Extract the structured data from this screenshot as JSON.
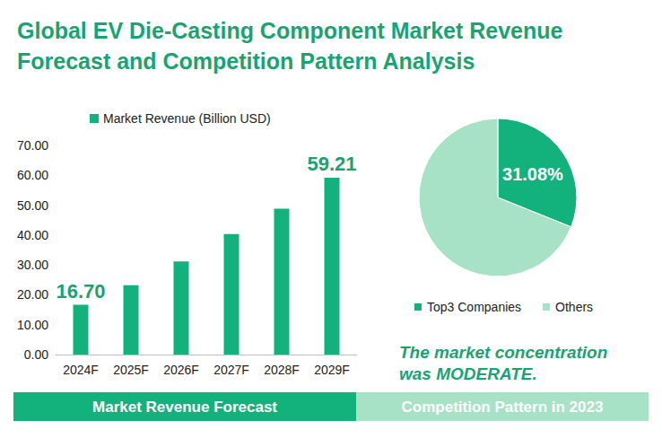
{
  "title": "Global EV Die-Casting Component Market Revenue Forecast and Competition Pattern Analysis",
  "chart_data": [
    {
      "type": "bar",
      "subtitle": "Market Revenue Forecast",
      "categories": [
        "2024F",
        "2025F",
        "2026F",
        "2027F",
        "2028F",
        "2029F"
      ],
      "series": [
        {
          "name": "Market Revenue (Billion USD)",
          "color": "#13b27d",
          "values": [
            16.7,
            23.2,
            31.2,
            40.3,
            48.8,
            59.21
          ],
          "value_labels": [
            "16.70",
            null,
            null,
            null,
            null,
            "59.21"
          ]
        }
      ],
      "ylim": [
        0,
        70
      ],
      "yticks": [
        {
          "value": 0,
          "label": "0.00"
        },
        {
          "value": 10,
          "label": "10.00"
        },
        {
          "value": 20,
          "label": "20.00"
        },
        {
          "value": 30,
          "label": "30.00"
        },
        {
          "value": 40,
          "label": "40.00"
        },
        {
          "value": 50,
          "label": "50.00"
        },
        {
          "value": 60,
          "label": "60.00"
        },
        {
          "value": 70,
          "label": "70.00"
        }
      ],
      "grid": false,
      "legend": "top-left",
      "data_labels": true
    },
    {
      "type": "pie",
      "subtitle": "Competition Pattern in 2023",
      "categories": [
        "Top3 Companies",
        "Others"
      ],
      "values": [
        31.08,
        68.92
      ],
      "value_labels": [
        "31.08%",
        null
      ],
      "colors": [
        "#13b27d",
        "#a8e2c6"
      ],
      "legend": "bottom",
      "data_labels": true,
      "annotations": [
        "The market concentration was MODERATE."
      ]
    }
  ]
}
